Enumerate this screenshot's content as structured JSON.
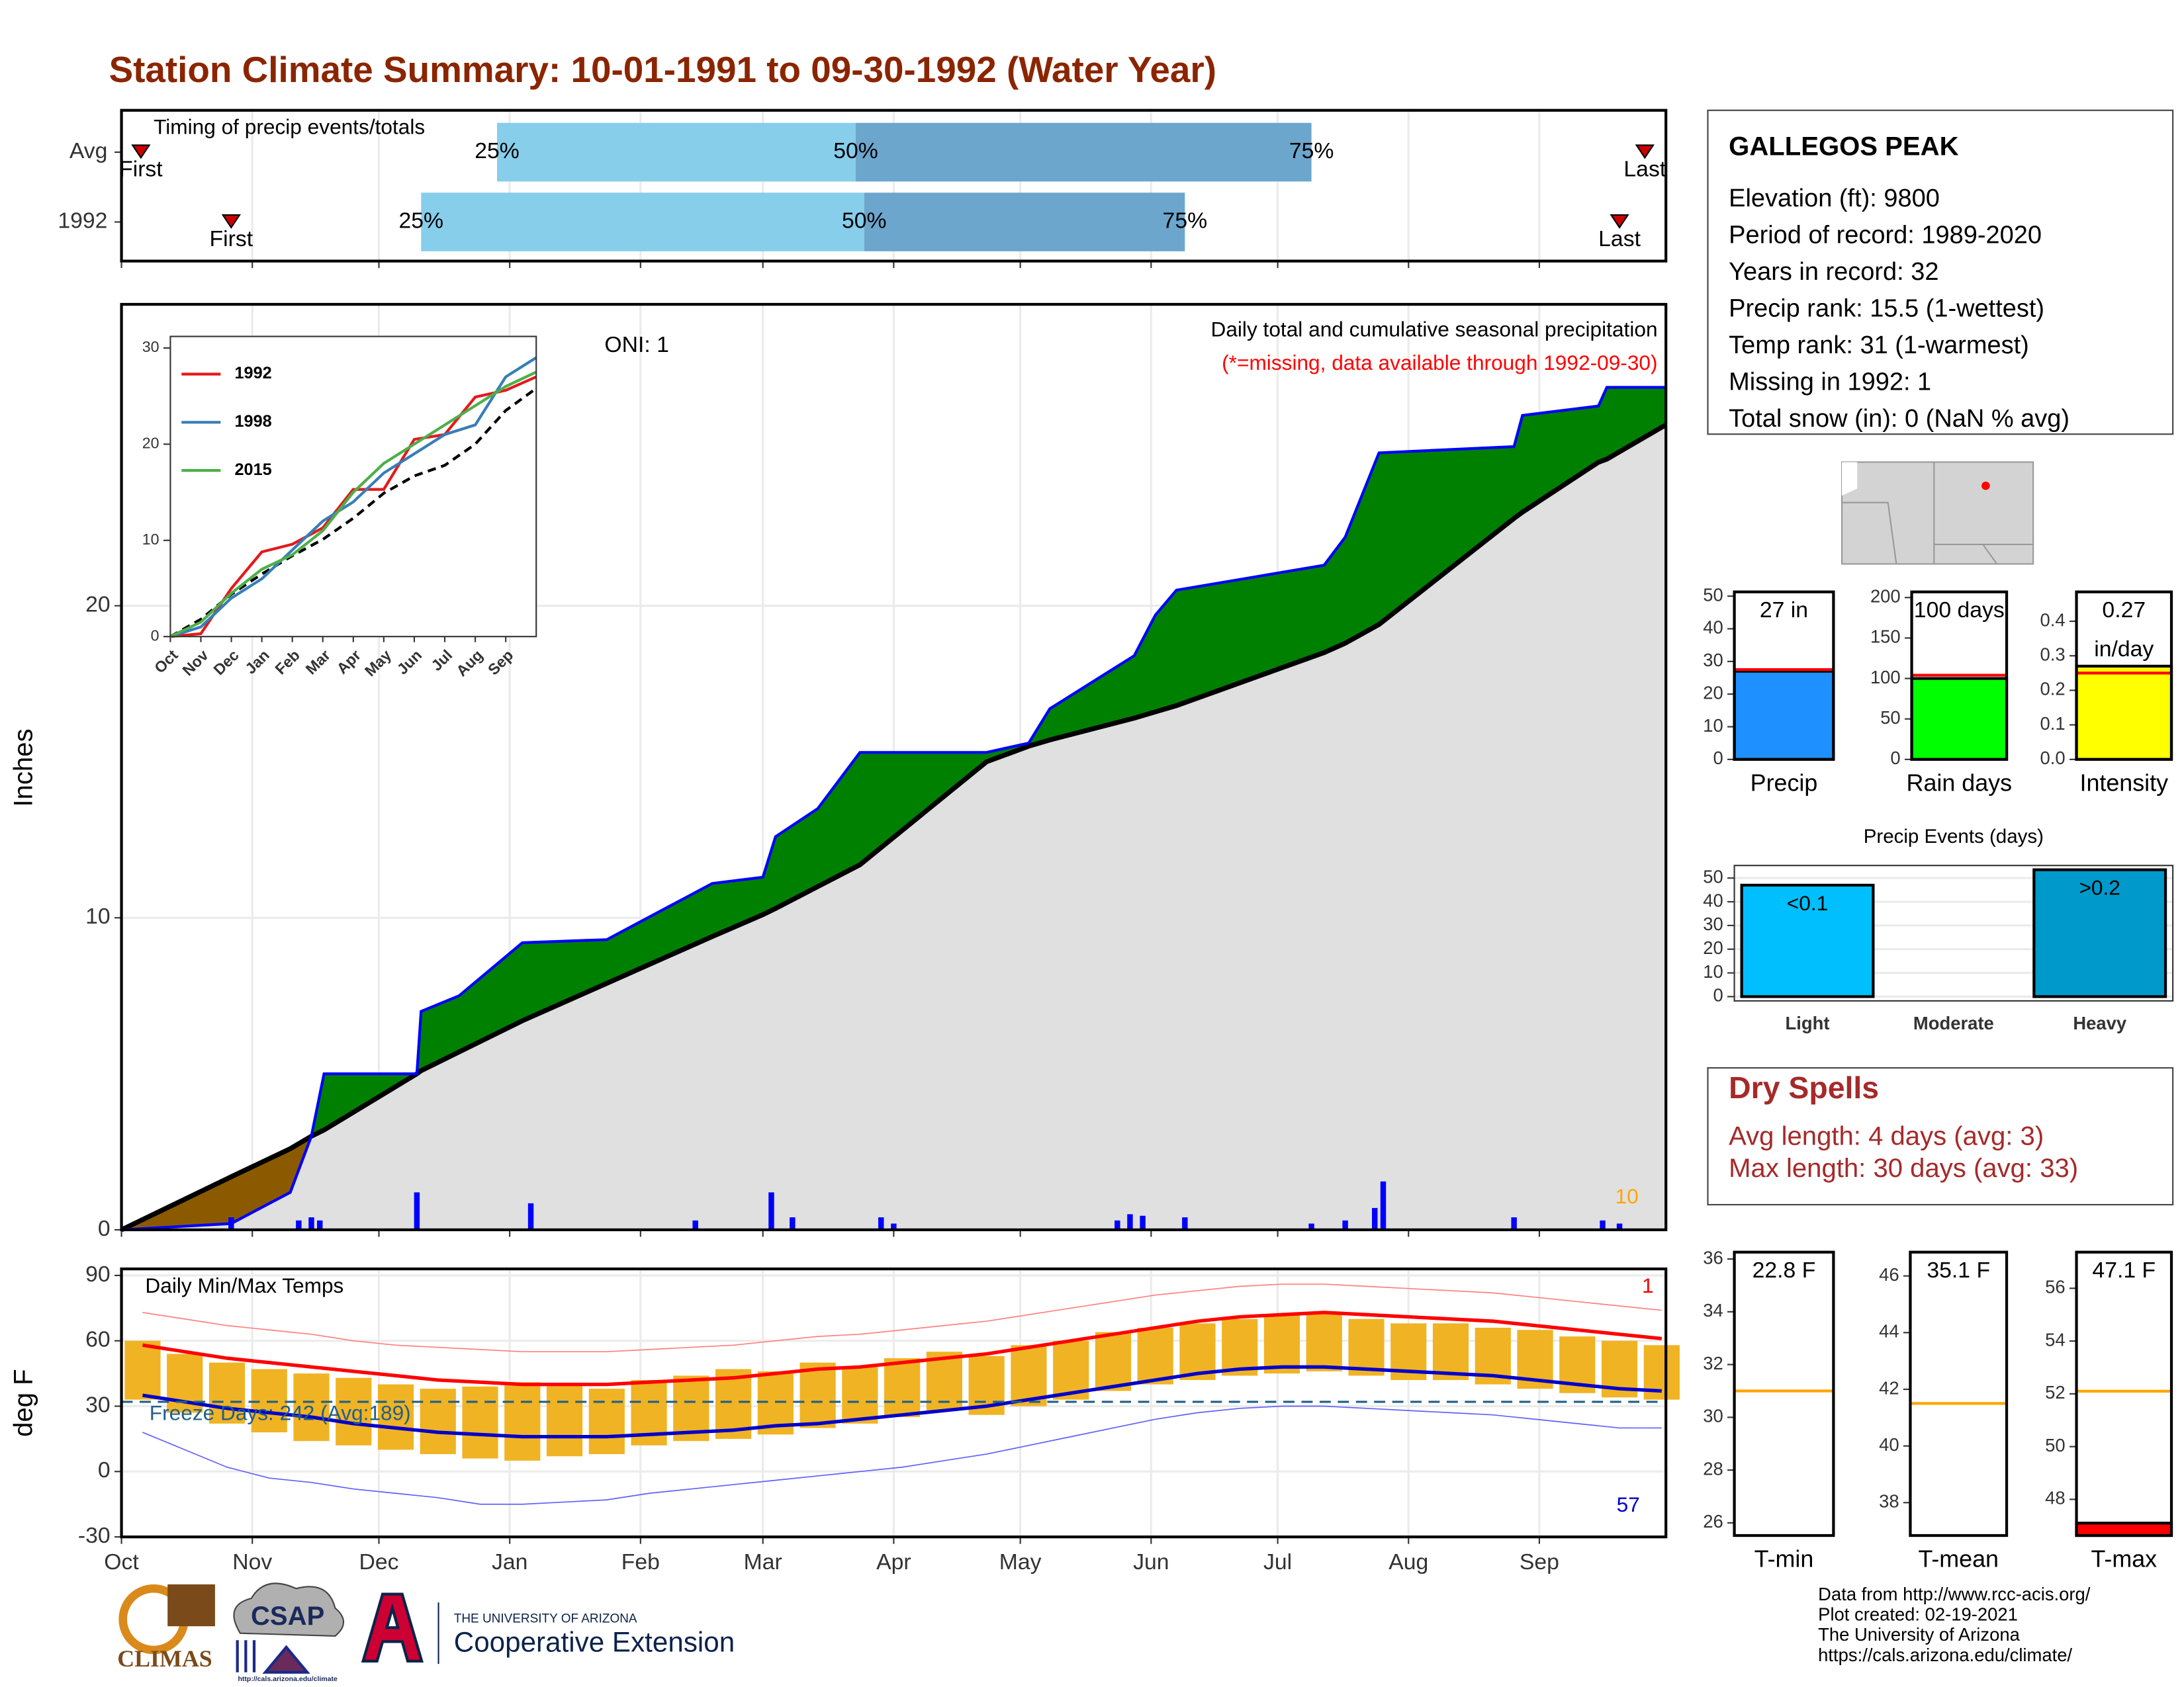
{
  "title": "Station Climate Summary: 10-01-1991 to 09-30-1992 (Water Year)",
  "chart_data": [
    {
      "type": "timing",
      "title": "Timing of precip events/totals",
      "categories": [
        "Avg",
        "1992"
      ],
      "first": [
        4.6,
        26
      ],
      "q25": [
        89,
        71
      ],
      "q50": [
        174,
        176
      ],
      "q75": [
        282,
        252
      ],
      "last": [
        361,
        355
      ],
      "quantile_labels": [
        "25%",
        "50%",
        "75%"
      ],
      "first_label": "First",
      "last_label": "Last",
      "xlim": [
        0,
        366
      ],
      "xticks": [
        0,
        31,
        61,
        92,
        123,
        152,
        183,
        213,
        244,
        274,
        305,
        336
      ],
      "grid": true,
      "colors": [
        "#87ceeb",
        "#6ca6cd"
      ],
      "marker_color": "#cc0000"
    },
    {
      "type": "cumulative",
      "ylabel": "Inches",
      "annotations": [
        "ONI: 1",
        "Daily total and cumulative seasonal precipitation",
        "(*=missing, data available through 1992-09-30)",
        "10"
      ],
      "x": [
        0,
        26,
        40,
        45,
        48,
        70,
        71,
        80,
        95,
        115,
        140,
        152,
        155,
        165,
        175,
        205,
        215,
        220,
        240,
        245,
        250,
        285,
        290,
        298,
        330,
        332,
        350,
        352,
        366
      ],
      "observed": [
        0,
        0.2,
        1.2,
        3.0,
        5.0,
        5.0,
        7.0,
        7.5,
        9.2,
        9.3,
        11.1,
        11.3,
        12.6,
        13.5,
        15.3,
        15.3,
        15.6,
        16.7,
        18.4,
        19.7,
        20.5,
        21.3,
        22.2,
        24.9,
        25.1,
        26.1,
        26.4,
        27.0,
        27.0
      ],
      "average": [
        0,
        1.7,
        2.6,
        3.0,
        3.2,
        5.0,
        5.1,
        5.7,
        6.7,
        7.9,
        9.4,
        10.1,
        10.3,
        11.0,
        11.7,
        15.0,
        15.5,
        15.7,
        16.4,
        16.6,
        16.8,
        18.5,
        18.8,
        19.4,
        22.8,
        23.0,
        24.6,
        24.7,
        25.8
      ],
      "daily_x": [
        26,
        42,
        45,
        47,
        70,
        97,
        136,
        154,
        159,
        180,
        183,
        236,
        239,
        242,
        252,
        282,
        290,
        297,
        299,
        330,
        351,
        355
      ],
      "daily": [
        0.4,
        0.3,
        0.4,
        0.3,
        1.2,
        0.85,
        0.3,
        1.2,
        0.4,
        0.4,
        0.2,
        0.3,
        0.5,
        0.45,
        0.4,
        0.2,
        0.3,
        0.7,
        1.55,
        0.4,
        0.3,
        0.2
      ],
      "colors": {
        "observed": "#0000ff",
        "average": "#000000",
        "above": "#008000",
        "below": "#8b5a00",
        "base": "#e0e0e0",
        "daily": "#0000ff"
      },
      "xlim": [
        0,
        366
      ],
      "xticks": [
        0,
        31,
        61,
        92,
        123,
        152,
        183,
        213,
        244,
        274,
        305,
        336
      ],
      "ylim": [
        0,
        29.66
      ],
      "yticks": [
        0,
        10,
        20
      ],
      "grid": true
    },
    {
      "type": "line",
      "x": [
        0,
        1,
        2,
        3,
        4,
        5,
        6,
        7,
        8,
        9,
        10,
        11,
        12
      ],
      "series": [
        {
          "name": "1992",
          "color": "#e41a1c",
          "values": [
            0,
            0.3,
            5.0,
            8.8,
            9.6,
            11.3,
            15.3,
            15.3,
            20.5,
            21.0,
            24.9,
            25.6,
            27.0
          ]
        },
        {
          "name": "1998",
          "color": "#377eb8",
          "values": [
            0,
            1,
            4,
            6,
            9,
            12,
            14,
            17,
            19,
            21,
            22,
            27,
            29
          ]
        },
        {
          "name": "2015",
          "color": "#4daf4a",
          "values": [
            0,
            1.5,
            4.5,
            7,
            8.5,
            11,
            15,
            18,
            20,
            22,
            24,
            26,
            27.5
          ]
        }
      ],
      "average": [
        0,
        1.8,
        4.4,
        6.5,
        8.4,
        10.1,
        12.3,
        14.9,
        16.7,
        17.8,
        20.0,
        23.5,
        25.8
      ],
      "xlim": [
        0,
        12
      ],
      "ylim": [
        0,
        31.2
      ],
      "yticks": [
        0,
        10,
        20,
        30
      ],
      "xticks": [
        {
          "value": 0,
          "label": "Oct"
        },
        {
          "value": 1,
          "label": "Nov"
        },
        {
          "value": 2,
          "label": "Dec"
        },
        {
          "value": 3,
          "label": "Jan"
        },
        {
          "value": 4,
          "label": "Feb"
        },
        {
          "value": 5,
          "label": "Mar"
        },
        {
          "value": 6,
          "label": "Apr"
        },
        {
          "value": 7,
          "label": "May"
        },
        {
          "value": 8,
          "label": "Jun"
        },
        {
          "value": 9,
          "label": "Jul"
        },
        {
          "value": 10,
          "label": "Aug"
        },
        {
          "value": 11,
          "label": "Sep"
        }
      ]
    },
    {
      "type": "temperature",
      "title": "Daily Min/Max Temps",
      "ylabel": "deg F",
      "x": [
        5,
        15,
        25,
        35,
        45,
        55,
        65,
        75,
        85,
        95,
        105,
        115,
        125,
        135,
        145,
        155,
        165,
        175,
        185,
        195,
        205,
        215,
        225,
        235,
        245,
        255,
        265,
        275,
        285,
        295,
        305,
        315,
        325,
        335,
        345,
        355,
        365
      ],
      "obs_max": [
        60,
        54,
        50,
        47,
        45,
        43,
        40,
        38,
        39,
        41,
        40,
        38,
        42,
        44,
        47,
        46,
        50,
        48,
        52,
        55,
        53,
        58,
        60,
        64,
        66,
        68,
        70,
        72,
        73,
        70,
        68,
        68,
        66,
        65,
        62,
        60,
        58
      ],
      "obs_min": [
        33,
        27,
        22,
        18,
        14,
        12,
        10,
        8,
        6,
        5,
        7,
        8,
        12,
        14,
        15,
        17,
        20,
        22,
        25,
        28,
        26,
        30,
        33,
        37,
        40,
        42,
        44,
        45,
        46,
        44,
        42,
        42,
        40,
        38,
        36,
        34,
        33
      ],
      "avg_max": [
        58,
        55,
        52,
        50,
        48,
        46,
        44,
        42,
        41,
        40,
        40,
        40,
        41,
        42,
        43,
        45,
        47,
        48,
        50,
        52,
        54,
        57,
        60,
        63,
        66,
        69,
        71,
        72,
        73,
        72,
        71,
        70,
        69,
        67,
        65,
        63,
        61
      ],
      "avg_min": [
        35,
        32,
        29,
        27,
        25,
        22,
        20,
        18,
        17,
        16,
        16,
        16,
        17,
        18,
        19,
        21,
        22,
        24,
        26,
        28,
        30,
        33,
        36,
        39,
        42,
        45,
        47,
        48,
        48,
        47,
        46,
        45,
        44,
        42,
        40,
        38,
        37
      ],
      "rec_max": [
        73,
        70,
        67,
        65,
        63,
        60,
        58,
        57,
        56,
        55,
        55,
        55,
        56,
        57,
        58,
        60,
        62,
        63,
        65,
        67,
        69,
        72,
        75,
        78,
        81,
        83,
        85,
        86,
        86,
        85,
        84,
        83,
        82,
        80,
        78,
        76,
        74
      ],
      "rec_min": [
        18,
        10,
        2,
        -3,
        -5,
        -8,
        -10,
        -12,
        -15,
        -15,
        -14,
        -13,
        -10,
        -8,
        -6,
        -4,
        -2,
        0,
        2,
        5,
        8,
        12,
        16,
        20,
        24,
        27,
        29,
        30,
        30,
        29,
        28,
        27,
        26,
        24,
        22,
        20,
        20
      ],
      "freeze_line": 32,
      "freeze_label": "Freeze Days: 242 (Avg:189)",
      "annotations": [
        "1",
        "57"
      ],
      "colors": {
        "bars": "#f0b323",
        "avg_max": "#ff0000",
        "avg_min": "#0000cc",
        "rec_max": "#ff8080",
        "rec_min": "#6060ff",
        "freeze": "#1f5f8a"
      },
      "xlim": [
        0,
        366
      ],
      "ylim": [
        -30,
        93
      ],
      "yticks": [
        -30,
        0,
        30,
        60,
        90
      ],
      "xticks": [
        {
          "value": 0,
          "label": "Oct"
        },
        {
          "value": 31,
          "label": "Nov"
        },
        {
          "value": 61,
          "label": "Dec"
        },
        {
          "value": 92,
          "label": "Jan"
        },
        {
          "value": 123,
          "label": "Feb"
        },
        {
          "value": 152,
          "label": "Mar"
        },
        {
          "value": 183,
          "label": "Apr"
        },
        {
          "value": 213,
          "label": "May"
        },
        {
          "value": 244,
          "label": "Jun"
        },
        {
          "value": 274,
          "label": "Jul"
        },
        {
          "value": 305,
          "label": "Aug"
        },
        {
          "value": 336,
          "label": "Sep"
        }
      ],
      "grid": true
    },
    {
      "type": "bar",
      "xlabel": "Precip",
      "value": 27,
      "value_label": "27 in",
      "average": 27.5,
      "color": "#1e90ff",
      "average_color": "#ff0000",
      "ylim": [
        0,
        51.3
      ],
      "yticks": [
        0,
        10,
        20,
        30,
        40,
        50
      ]
    },
    {
      "type": "bar",
      "xlabel": "Rain days",
      "value": 100,
      "value_label": "100 days",
      "average": 104,
      "color": "#00ff00",
      "average_color": "#ff0000",
      "ylim": [
        0,
        207
      ],
      "yticks": [
        0,
        50,
        100,
        150,
        200
      ]
    },
    {
      "type": "bar",
      "xlabel": "Intensity",
      "value": 0.27,
      "value_label": "0.27",
      "unit": "in/day",
      "average": 0.25,
      "color": "#ffff00",
      "average_color": "#ff0000",
      "ylim": [
        0,
        0.485
      ],
      "yticks": [
        {
          "value": 0,
          "label": "0.0"
        },
        0.1,
        0.2,
        0.3,
        0.4
      ]
    },
    {
      "type": "bar",
      "title": "Precip Events (days)",
      "categories": [
        "Light",
        "Moderate",
        "Heavy"
      ],
      "values": [
        47,
        0,
        53.5
      ],
      "bin_labels": [
        "<0.1",
        null,
        ">0.2"
      ],
      "colors": [
        "#00bfff",
        "#00bfff",
        "#0099cc"
      ],
      "ylim": [
        -1.8,
        55.3
      ],
      "yticks": [
        0,
        10,
        20,
        30,
        40,
        50
      ],
      "grid": true
    },
    {
      "type": "bar",
      "xlabel": "T-min",
      "value": 22.8,
      "value_label": "22.8 F",
      "average": 31,
      "color": "#ff0000",
      "average_color": "#ffa500",
      "ylim": [
        25.52,
        36.26
      ],
      "yticks": [
        26,
        28,
        30,
        32,
        34,
        36
      ]
    },
    {
      "type": "bar",
      "xlabel": "T-mean",
      "value": 35.1,
      "value_label": "35.1 F",
      "average": 41.5,
      "color": "#ff0000",
      "average_color": "#ffa500",
      "ylim": [
        36.84,
        46.84
      ],
      "yticks": [
        38,
        40,
        42,
        44,
        46
      ]
    },
    {
      "type": "bar",
      "xlabel": "T-max",
      "value": 47.1,
      "value_label": "47.1 F",
      "average": 52.1,
      "color": "#ff0000",
      "average_color": "#ffa500",
      "ylim": [
        46.63,
        57.37
      ],
      "yticks": [
        48,
        50,
        52,
        54,
        56
      ]
    }
  ],
  "station": {
    "name": "GALLEGOS PEAK",
    "lines": [
      "Elevation (ft): 9800",
      "Period of record: 1989-2020",
      "Years in record: 32",
      "Precip rank: 15.5 (1-wettest)",
      "Temp rank: 31 (1-warmest)",
      "Missing in 1992: 1",
      "Total snow (in): 0 (NaN % avg)"
    ]
  },
  "dry_spells": {
    "title": "Dry Spells",
    "lines": [
      "Avg length: 4 days (avg: 3)",
      "Max length: 30 days (avg: 33)"
    ]
  },
  "footer": [
    "Data from http://www.rcc-acis.org/",
    "Plot created: 02-19-2021",
    "The University of Arizona",
    "https://cals.arizona.edu/climate/"
  ],
  "logos": {
    "climas": "CLIMAS",
    "csap": "CSAP",
    "csap_url": "http://cals.arizona.edu/climate",
    "ua": "THE UNIVERSITY OF ARIZONA",
    "coop": "Cooperative Extension"
  }
}
